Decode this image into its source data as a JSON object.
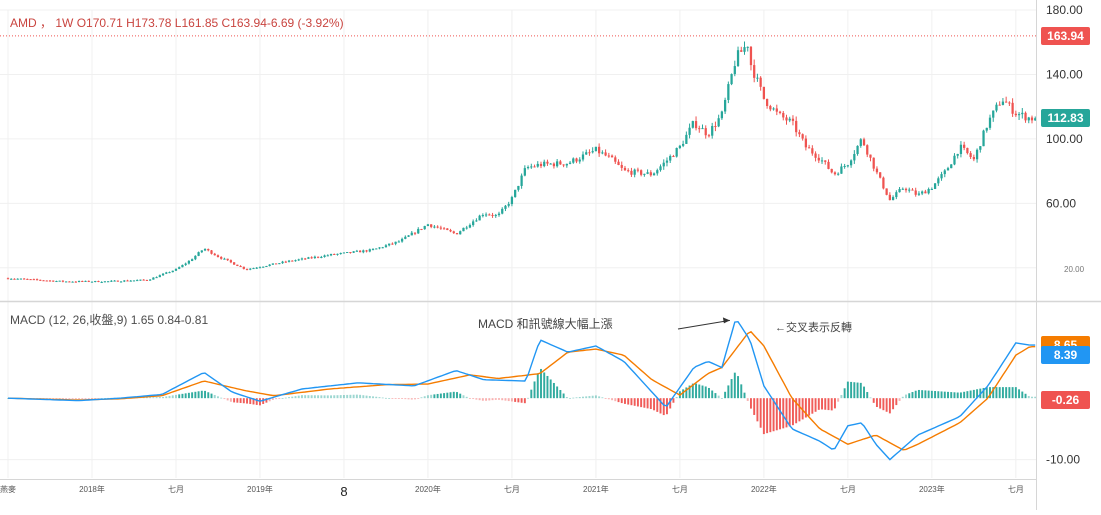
{
  "chart_data": [
    {
      "type": "candlestick",
      "symbol": "AMD",
      "interval": "1W",
      "legend": {
        "symbol": "AMD",
        "interval": "1W",
        "ohlc_text": "O170.71 H173.78 L161.85 C163.94-6.69 (-3.92%)"
      },
      "ylim": [
        0,
        180
      ],
      "y_ticks": [
        "180.00",
        "140.00",
        "100.00",
        "60.00",
        "20.00"
      ],
      "y_tick_values": [
        180,
        140,
        100,
        60,
        20
      ],
      "last_price_high": "163.94",
      "last_price_current": "112.83",
      "high_price_value": 163.94,
      "current_price_value": 112.83,
      "up_color": "#26a69a",
      "down_color": "#ef5350",
      "price_path": [
        [
          "2017-07",
          13.5
        ],
        [
          "2017-11",
          11.5
        ],
        [
          "2018-02",
          11.5
        ],
        [
          "2018-05",
          12.5
        ],
        [
          "2018-07",
          19.0
        ],
        [
          "2018-08",
          24.5
        ],
        [
          "2018-09",
          32.0
        ],
        [
          "2018-10",
          27.0
        ],
        [
          "2018-12",
          19.0
        ],
        [
          "2019-03",
          24.0
        ],
        [
          "2019-06",
          28.0
        ],
        [
          "2019-09",
          31.0
        ],
        [
          "2019-11",
          36.5
        ],
        [
          "2020-01",
          47.0
        ],
        [
          "2020-03",
          41.0
        ],
        [
          "2020-05",
          54.0
        ],
        [
          "2020-06",
          52.0
        ],
        [
          "2020-07",
          63.0
        ],
        [
          "2020-08",
          82.0
        ],
        [
          "2020-09",
          84.0
        ],
        [
          "2020-11",
          85.0
        ],
        [
          "2021-01",
          93.0
        ],
        [
          "2021-02",
          88.0
        ],
        [
          "2021-03",
          80.0
        ],
        [
          "2021-05",
          78.0
        ],
        [
          "2021-06",
          86.0
        ],
        [
          "2021-07",
          95.0
        ],
        [
          "2021-08",
          110.0
        ],
        [
          "2021-09",
          103.0
        ],
        [
          "2021-10",
          115.0
        ],
        [
          "2021-11",
          150.0
        ],
        [
          "2021-11-29",
          160.0
        ],
        [
          "2021-12",
          148.0
        ],
        [
          "2022-01",
          125.0
        ],
        [
          "2022-02",
          115.0
        ],
        [
          "2022-03",
          110.0
        ],
        [
          "2022-04",
          95.0
        ],
        [
          "2022-05",
          88.0
        ],
        [
          "2022-06",
          78.0
        ],
        [
          "2022-07",
          85.0
        ],
        [
          "2022-08",
          100.0
        ],
        [
          "2022-09",
          80.0
        ],
        [
          "2022-10",
          62.0
        ],
        [
          "2022-11",
          70.0
        ],
        [
          "2022-12",
          65.0
        ],
        [
          "2023-01",
          70.0
        ],
        [
          "2023-02",
          80.0
        ],
        [
          "2023-03",
          95.0
        ],
        [
          "2023-04",
          87.0
        ],
        [
          "2023-05",
          110.0
        ],
        [
          "2023-06",
          125.0
        ],
        [
          "2023-07",
          116.0
        ],
        [
          "2023-08",
          112.83
        ]
      ]
    },
    {
      "type": "macd",
      "legend": {
        "label": "MACD (12, 26,收盤,9)",
        "values_text": "1.65 0.84-0.81"
      },
      "y_ticks": [
        "-10.00"
      ],
      "y_tick_values": [
        -10
      ],
      "ylim": [
        -13,
        15.5
      ],
      "tag_macd": "8.65",
      "tag_signal": "8.39",
      "tag_hist": "-0.26",
      "tag_macd_value": 8.65,
      "tag_signal_value": 8.39,
      "tag_hist_value": -0.26,
      "macd_color": "#2196f3",
      "signal_color": "#f57c00",
      "hist_up_color": "#26a69a",
      "hist_down_color": "#ef5350",
      "macd_series": [
        [
          "2017-07",
          0.0
        ],
        [
          "2017-12",
          -0.4
        ],
        [
          "2018-03",
          0.0
        ],
        [
          "2018-06",
          0.6
        ],
        [
          "2018-09",
          4.2
        ],
        [
          "2018-11",
          1.0
        ],
        [
          "2019-01",
          -0.5
        ],
        [
          "2019-04",
          1.5
        ],
        [
          "2019-08",
          2.5
        ],
        [
          "2019-12",
          2.0
        ],
        [
          "2020-03",
          4.5
        ],
        [
          "2020-05",
          3.0
        ],
        [
          "2020-08",
          2.8
        ],
        [
          "2020-09",
          9.5
        ],
        [
          "2020-11",
          7.5
        ],
        [
          "2021-01",
          8.5
        ],
        [
          "2021-03",
          6.0
        ],
        [
          "2021-05",
          1.0
        ],
        [
          "2021-06",
          -1.5
        ],
        [
          "2021-08",
          5.0
        ],
        [
          "2021-09",
          6.0
        ],
        [
          "2021-10",
          5.0
        ],
        [
          "2021-11",
          13.0
        ],
        [
          "2021-12",
          9.5
        ],
        [
          "2022-01",
          2.0
        ],
        [
          "2022-03",
          -5.0
        ],
        [
          "2022-05",
          -7.0
        ],
        [
          "2022-06",
          -8.5
        ],
        [
          "2022-07",
          -4.5
        ],
        [
          "2022-08",
          -4.0
        ],
        [
          "2022-09",
          -7.5
        ],
        [
          "2022-10",
          -10.0
        ],
        [
          "2022-12",
          -6.0
        ],
        [
          "2023-03",
          -3.0
        ],
        [
          "2023-05",
          2.0
        ],
        [
          "2023-07",
          9.0
        ],
        [
          "2023-08",
          8.65
        ]
      ],
      "signal_series": [
        [
          "2017-07",
          0.0
        ],
        [
          "2017-12",
          -0.3
        ],
        [
          "2018-03",
          -0.1
        ],
        [
          "2018-06",
          0.4
        ],
        [
          "2018-09",
          2.8
        ],
        [
          "2018-12",
          1.2
        ],
        [
          "2019-02",
          0.4
        ],
        [
          "2019-06",
          1.5
        ],
        [
          "2019-10",
          2.2
        ],
        [
          "2020-01",
          2.3
        ],
        [
          "2020-04",
          3.8
        ],
        [
          "2020-06",
          3.2
        ],
        [
          "2020-09",
          4.0
        ],
        [
          "2020-11",
          7.5
        ],
        [
          "2021-01",
          8.0
        ],
        [
          "2021-03",
          7.0
        ],
        [
          "2021-05",
          3.0
        ],
        [
          "2021-07",
          0.5
        ],
        [
          "2021-09",
          4.0
        ],
        [
          "2021-10",
          5.0
        ],
        [
          "2021-12",
          11.0
        ],
        [
          "2022-01",
          8.5
        ],
        [
          "2022-03",
          0.0
        ],
        [
          "2022-05",
          -5.0
        ],
        [
          "2022-07",
          -7.5
        ],
        [
          "2022-09",
          -6.0
        ],
        [
          "2022-11",
          -8.5
        ],
        [
          "2022-12",
          -7.5
        ],
        [
          "2023-03",
          -4.0
        ],
        [
          "2023-05",
          0.0
        ],
        [
          "2023-07",
          7.0
        ],
        [
          "2023-08",
          8.39
        ]
      ]
    }
  ],
  "time_axis": {
    "labels": [
      {
        "text": "燕麥",
        "date": "2017-07"
      },
      {
        "text": "2018年",
        "date": "2018-01"
      },
      {
        "text": "七月",
        "date": "2018-07"
      },
      {
        "text": "2019年",
        "date": "2019-01"
      },
      {
        "text": "8",
        "date": "2019-07"
      },
      {
        "text": "2020年",
        "date": "2020-01"
      },
      {
        "text": "七月",
        "date": "2020-07"
      },
      {
        "text": "2021年",
        "date": "2021-01"
      },
      {
        "text": "七月",
        "date": "2021-07"
      },
      {
        "text": "2022年",
        "date": "2022-01"
      },
      {
        "text": "七月",
        "date": "2022-07"
      },
      {
        "text": "2023年",
        "date": "2023-01"
      },
      {
        "text": "七月",
        "date": "2023-07"
      }
    ]
  },
  "annotations": {
    "macd_rise": "MACD 和訊號線大幅上漲",
    "cross": "←交叉表示反轉"
  }
}
